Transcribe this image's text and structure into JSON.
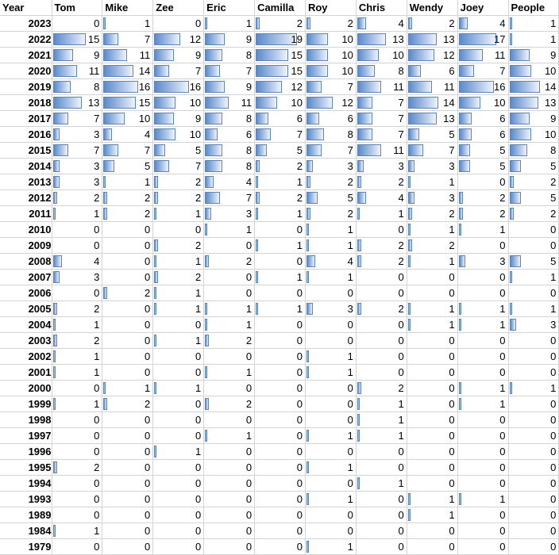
{
  "chart_data": {
    "type": "table",
    "title": "",
    "notes": "Spreadsheet with in-cell data bars (blue gradient), scaled to max value 19",
    "bar_max": 19,
    "columns": [
      "Year",
      "Tom",
      "Mike",
      "Zee",
      "Eric",
      "Camilla",
      "Roy",
      "Chris",
      "Wendy",
      "Joey",
      "People"
    ],
    "rows": [
      {
        "year": "2023",
        "values": [
          0,
          1,
          0,
          1,
          2,
          2,
          4,
          2,
          4,
          1
        ]
      },
      {
        "year": "2022",
        "values": [
          15,
          7,
          12,
          9,
          19,
          10,
          13,
          13,
          17,
          1
        ]
      },
      {
        "year": "2021",
        "values": [
          9,
          11,
          9,
          8,
          15,
          10,
          10,
          12,
          11,
          9
        ]
      },
      {
        "year": "2020",
        "values": [
          11,
          14,
          7,
          7,
          15,
          10,
          8,
          6,
          7,
          10
        ]
      },
      {
        "year": "2019",
        "values": [
          8,
          16,
          16,
          9,
          12,
          7,
          11,
          11,
          16,
          14
        ]
      },
      {
        "year": "2018",
        "values": [
          13,
          15,
          10,
          11,
          10,
          12,
          7,
          14,
          10,
          13
        ]
      },
      {
        "year": "2017",
        "values": [
          7,
          10,
          9,
          8,
          6,
          6,
          7,
          13,
          6,
          9
        ]
      },
      {
        "year": "2016",
        "values": [
          3,
          4,
          10,
          6,
          7,
          8,
          7,
          5,
          6,
          10
        ]
      },
      {
        "year": "2015",
        "values": [
          7,
          7,
          5,
          8,
          5,
          7,
          11,
          7,
          5,
          8
        ]
      },
      {
        "year": "2014",
        "values": [
          3,
          5,
          7,
          8,
          2,
          3,
          3,
          3,
          5,
          5
        ]
      },
      {
        "year": "2013",
        "values": [
          3,
          1,
          2,
          4,
          1,
          2,
          2,
          1,
          0,
          2
        ]
      },
      {
        "year": "2012",
        "values": [
          2,
          2,
          2,
          7,
          2,
          5,
          4,
          3,
          2,
          5
        ]
      },
      {
        "year": "2011",
        "values": [
          1,
          2,
          1,
          3,
          1,
          2,
          1,
          2,
          2,
          2
        ]
      },
      {
        "year": "2010",
        "values": [
          0,
          0,
          0,
          1,
          0,
          1,
          0,
          1,
          1,
          0
        ]
      },
      {
        "year": "2009",
        "values": [
          0,
          0,
          2,
          0,
          1,
          1,
          2,
          2,
          0,
          0
        ]
      },
      {
        "year": "2008",
        "values": [
          4,
          0,
          1,
          2,
          0,
          4,
          2,
          1,
          3,
          5
        ]
      },
      {
        "year": "2007",
        "values": [
          3,
          0,
          2,
          0,
          1,
          1,
          0,
          0,
          0,
          1
        ]
      },
      {
        "year": "2006",
        "values": [
          0,
          2,
          1,
          0,
          0,
          0,
          0,
          0,
          0,
          0
        ]
      },
      {
        "year": "2005",
        "values": [
          2,
          0,
          1,
          1,
          1,
          3,
          2,
          1,
          1,
          1
        ]
      },
      {
        "year": "2004",
        "values": [
          1,
          0,
          0,
          1,
          0,
          0,
          0,
          1,
          1,
          3
        ]
      },
      {
        "year": "2003",
        "values": [
          2,
          0,
          1,
          2,
          0,
          0,
          0,
          0,
          0,
          0
        ]
      },
      {
        "year": "2002",
        "values": [
          1,
          0,
          0,
          0,
          0,
          1,
          0,
          0,
          0,
          0
        ]
      },
      {
        "year": "2001",
        "values": [
          1,
          0,
          0,
          1,
          0,
          1,
          0,
          0,
          0,
          0
        ]
      },
      {
        "year": "2000",
        "values": [
          0,
          1,
          1,
          0,
          0,
          0,
          2,
          0,
          1,
          1
        ]
      },
      {
        "year": "1999",
        "values": [
          1,
          2,
          0,
          2,
          0,
          0,
          1,
          0,
          1,
          0
        ]
      },
      {
        "year": "1998",
        "values": [
          0,
          0,
          0,
          0,
          0,
          0,
          1,
          0,
          0,
          0
        ]
      },
      {
        "year": "1997",
        "values": [
          0,
          0,
          0,
          1,
          0,
          1,
          1,
          0,
          0,
          0
        ]
      },
      {
        "year": "1996",
        "values": [
          0,
          0,
          1,
          0,
          0,
          0,
          0,
          0,
          0,
          0
        ]
      },
      {
        "year": "1995",
        "values": [
          2,
          0,
          0,
          0,
          0,
          1,
          0,
          0,
          0,
          0
        ]
      },
      {
        "year": "1994",
        "values": [
          0,
          0,
          0,
          0,
          0,
          0,
          1,
          0,
          0,
          0
        ]
      },
      {
        "year": "1993",
        "values": [
          0,
          0,
          0,
          0,
          0,
          1,
          0,
          1,
          1,
          0
        ]
      },
      {
        "year": "1989",
        "values": [
          0,
          0,
          0,
          0,
          0,
          0,
          0,
          1,
          0,
          0
        ]
      },
      {
        "year": "1984",
        "values": [
          1,
          0,
          0,
          0,
          0,
          0,
          0,
          0,
          0,
          0
        ]
      },
      {
        "year": "1979",
        "values": [
          0,
          0,
          0,
          0,
          0,
          1,
          0,
          0,
          0,
          0
        ]
      }
    ]
  },
  "colors": {
    "bar_start": "#5b8ac9",
    "bar_end": "#eef3fb",
    "bar_border": "#5d83b7",
    "gridline": "#d4d4d4"
  }
}
